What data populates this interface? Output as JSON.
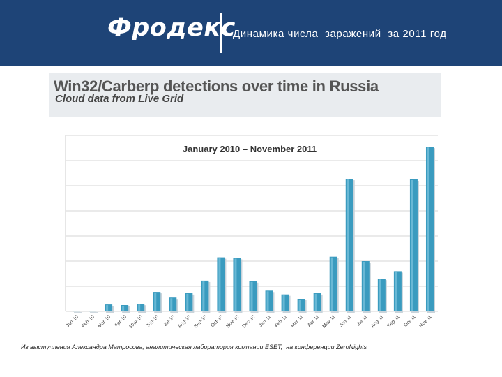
{
  "header": {
    "logo_text": "Фродекс",
    "subtitle": "Динамика числа  заражений  за 2011 год",
    "background_color": "#1e4477"
  },
  "chart_data": {
    "type": "bar",
    "title": "Win32/Carberp detections over time in Russia",
    "subtitle": "Cloud data from Live Grid",
    "period_label": "January 2010 – November 2011",
    "categories": [
      "Jan-10",
      "Feb-10",
      "Mar-10",
      "Apr-10",
      "May-10",
      "Jun-10",
      "Jul-10",
      "Aug-10",
      "Sep-10",
      "Oct-10",
      "Nov-10",
      "Dec-10",
      "Jan-11",
      "Feb-11",
      "Mar-11",
      "Apr-11",
      "May-11",
      "Jun-11",
      "Jul-11",
      "Aug-11",
      "Sep-11",
      "Oct-11",
      "Nov-11"
    ],
    "values": [
      0.05,
      0.05,
      0.55,
      0.5,
      0.6,
      1.55,
      1.1,
      1.45,
      2.45,
      4.3,
      4.25,
      2.4,
      1.65,
      1.35,
      1.0,
      1.45,
      4.35,
      10.55,
      4.0,
      2.6,
      3.2,
      10.5,
      13.1
    ],
    "ylim": [
      0,
      14
    ],
    "grid": true,
    "bar_color": "#3a9bbf"
  },
  "caption": "Из выступления Александра Матросова, аналитическая лаборатория компании ESET,  на конференции ZeroNights"
}
